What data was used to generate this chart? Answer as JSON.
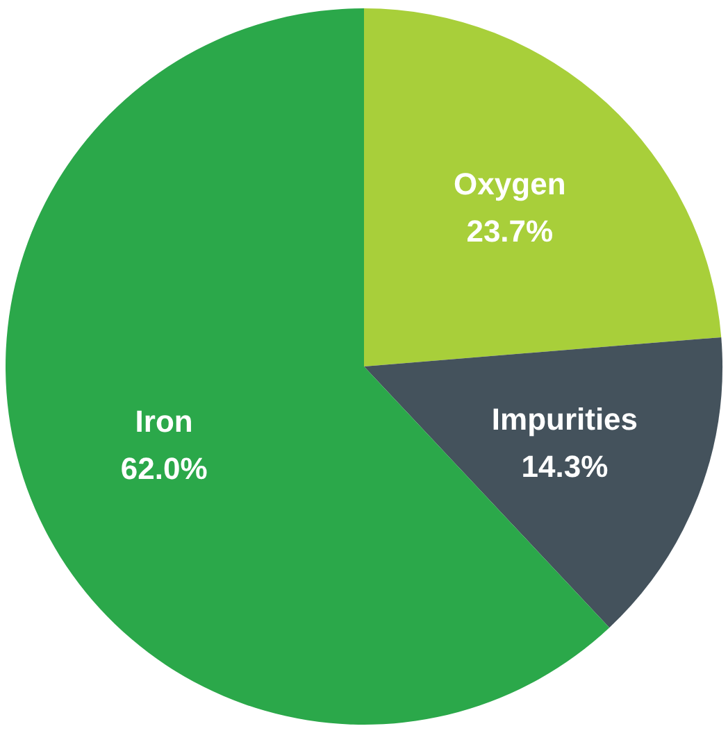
{
  "chart_data": {
    "type": "pie",
    "categories": [
      "Oxygen",
      "Impurities",
      "Iron"
    ],
    "values": [
      23.7,
      14.3,
      62.0
    ],
    "value_labels": [
      "23.7%",
      "14.3%",
      "62.0%"
    ],
    "colors": [
      "#a8cf3a",
      "#44525c",
      "#2ba84a"
    ]
  }
}
